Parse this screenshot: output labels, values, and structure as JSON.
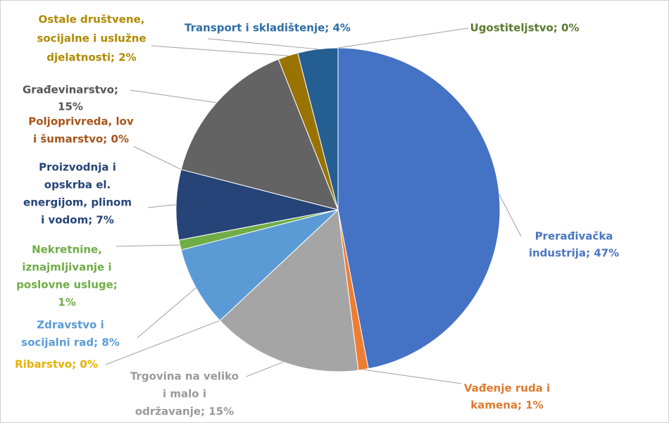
{
  "chart_data": {
    "type": "pie",
    "values": [
      47,
      1,
      15,
      0,
      8,
      1,
      7,
      0,
      15,
      2,
      4,
      0
    ],
    "value_labels": [
      [
        "Prerađivačka",
        "industrija; 47%"
      ],
      [
        "Vađenje ruda i",
        "kamena; 1%"
      ],
      [
        "Trgovina na veliko",
        "i malo i",
        "održavanje; 15%"
      ],
      [
        "Ribarstvo; 0%"
      ],
      [
        "Zdravstvo i",
        "socijalni rad; 8%"
      ],
      [
        "Nekretnine,",
        "iznajmljivanje i",
        "poslovne usluge;",
        "1%"
      ],
      [
        "Proizvodnja i",
        "opskrba el.",
        "energijom, plinom",
        "i vodom; 7%"
      ],
      [
        "Poljoprivreda, lov",
        "i šumarstvo; 0%"
      ],
      [
        "Građevinarstvo;",
        "15%"
      ],
      [
        "Ostale društvene,",
        "socijalne i uslužne",
        "djelatnosti; 2%"
      ],
      [
        "Transport i skladištenje; 4%"
      ],
      [
        "Ugostiteljstvo; 0%"
      ]
    ],
    "colors": [
      "#4472c4",
      "#ed7d31",
      "#a5a5a5",
      "#ffc000",
      "#5b9bd5",
      "#70ad47",
      "#264478",
      "#9e480e",
      "#636363",
      "#997300",
      "#255e91",
      "#43682b"
    ],
    "label_colors": [
      "#4a76c4",
      "#e07a2e",
      "#9a9a9a",
      "#e6b000",
      "#5b9bd5",
      "#70ad47",
      "#264478",
      "#a8541a",
      "#555555",
      "#b08a00",
      "#2f6ea8",
      "#5a7a30"
    ]
  }
}
